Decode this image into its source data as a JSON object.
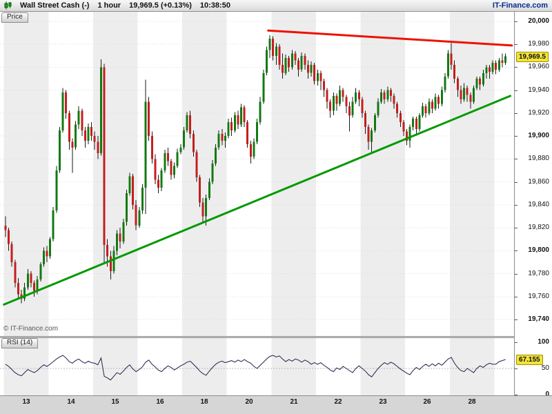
{
  "header": {
    "instrument": "Wall Street Cash (-)",
    "timeframe": "1 hour",
    "quote": "19,969.5 (+0.13%)",
    "time": "10:38:50",
    "brand": "IT-Finance.com"
  },
  "price_pane": {
    "tab_label": "Price",
    "watermark": "© IT-Finance.com",
    "last_price_label": "19,969.5",
    "axis_ticks": [
      {
        "label": "20,000",
        "value": 20000,
        "bold": true
      },
      {
        "label": "19,980",
        "value": 19980,
        "bold": false
      },
      {
        "label": "19,960",
        "value": 19960,
        "bold": false
      },
      {
        "label": "19,940",
        "value": 19940,
        "bold": false
      },
      {
        "label": "19,920",
        "value": 19920,
        "bold": false
      },
      {
        "label": "19,900",
        "value": 19900,
        "bold": true
      },
      {
        "label": "19,880",
        "value": 19880,
        "bold": false
      },
      {
        "label": "19,860",
        "value": 19860,
        "bold": false
      },
      {
        "label": "19,840",
        "value": 19840,
        "bold": false
      },
      {
        "label": "19,820",
        "value": 19820,
        "bold": false
      },
      {
        "label": "19,800",
        "value": 19800,
        "bold": true
      },
      {
        "label": "19,780",
        "value": 19780,
        "bold": false
      },
      {
        "label": "19,760",
        "value": 19760,
        "bold": false
      },
      {
        "label": "19,740",
        "value": 19740,
        "bold": true
      }
    ]
  },
  "rsi_pane": {
    "tab_label": "RSI (14)",
    "current_label": "67.155",
    "axis_ticks": [
      {
        "label": "100",
        "value": 100,
        "bold": true
      },
      {
        "label": "50",
        "value": 50,
        "bold": false
      },
      {
        "label": "0",
        "value": 0,
        "bold": true
      }
    ]
  },
  "x_axis": {
    "labels": [
      "13",
      "14",
      "15",
      "16",
      "18",
      "20",
      "21",
      "22",
      "23",
      "26",
      "28"
    ]
  },
  "colors": {
    "stripe": "#ededed",
    "grid": "#d9d9d9",
    "wick": "#1a1a1a",
    "up_candle": "#117a11",
    "down_candle": "#c41e1e",
    "trend_up": "#009900",
    "trend_down": "#ee1100",
    "rsi_line": "#20204a",
    "rsi_level": "#b9b9b9",
    "badge_bg": "#f2e33a",
    "brand_blue": "#002d8f"
  },
  "chart_data": {
    "type": "candlestick",
    "title": "Wall Street Cash (-) 1 hour",
    "indicator": "RSI (14)",
    "last_price": 19969.5,
    "price_axis": {
      "min": 19740,
      "max": 20000,
      "step": 20,
      "bold_every": 100
    },
    "x_labels": [
      "13",
      "14",
      "15",
      "16",
      "18",
      "20",
      "21",
      "22",
      "23",
      "26",
      "28"
    ],
    "candles_per_day": 14,
    "ohlc_format": [
      "open",
      "high",
      "low",
      "close"
    ],
    "candles": [
      [
        19822,
        19830,
        19812,
        19818
      ],
      [
        19818,
        19820,
        19800,
        19806
      ],
      [
        19806,
        19808,
        19786,
        19790
      ],
      [
        19790,
        19792,
        19768,
        19772
      ],
      [
        19772,
        19776,
        19758,
        19762
      ],
      [
        19762,
        19766,
        19754,
        19758
      ],
      [
        19758,
        19772,
        19756,
        19768
      ],
      [
        19768,
        19784,
        19766,
        19780
      ],
      [
        19780,
        19782,
        19768,
        19772
      ],
      [
        19772,
        19774,
        19760,
        19765
      ],
      [
        19765,
        19778,
        19762,
        19775
      ],
      [
        19775,
        19790,
        19773,
        19788
      ],
      [
        19788,
        19803,
        19786,
        19800
      ],
      [
        19800,
        19804,
        19790,
        19795
      ],
      [
        19795,
        19812,
        19793,
        19810
      ],
      [
        19810,
        19838,
        19808,
        19835
      ],
      [
        19835,
        19874,
        19833,
        19870
      ],
      [
        19870,
        19908,
        19868,
        19905
      ],
      [
        19905,
        19942,
        19903,
        19938
      ],
      [
        19938,
        19940,
        19915,
        19920
      ],
      [
        19920,
        19922,
        19888,
        19895
      ],
      [
        19895,
        19898,
        19868,
        19890
      ],
      [
        19890,
        19913,
        19888,
        19910
      ],
      [
        19910,
        19926,
        19906,
        19922
      ],
      [
        19922,
        19924,
        19900,
        19905
      ],
      [
        19905,
        19908,
        19890,
        19896
      ],
      [
        19896,
        19911,
        19893,
        19908
      ],
      [
        19908,
        19912,
        19896,
        19900
      ],
      [
        19900,
        19904,
        19888,
        19895
      ],
      [
        19895,
        19900,
        19880,
        19885
      ],
      [
        19885,
        19967,
        19883,
        19960
      ],
      [
        19960,
        19963,
        19788,
        19805
      ],
      [
        19805,
        19810,
        19786,
        19795
      ],
      [
        19795,
        19800,
        19775,
        19782
      ],
      [
        19782,
        19804,
        19780,
        19800
      ],
      [
        19800,
        19818,
        19796,
        19815
      ],
      [
        19815,
        19820,
        19802,
        19808
      ],
      [
        19808,
        19828,
        19806,
        19825
      ],
      [
        19825,
        19853,
        19822,
        19850
      ],
      [
        19850,
        19868,
        19848,
        19865
      ],
      [
        19865,
        19867,
        19836,
        19840
      ],
      [
        19840,
        19844,
        19818,
        19822
      ],
      [
        19822,
        19838,
        19820,
        19835
      ],
      [
        19835,
        19858,
        19832,
        19855
      ],
      [
        19855,
        19949,
        19832,
        19930
      ],
      [
        19930,
        19934,
        19896,
        19900
      ],
      [
        19900,
        19904,
        19876,
        19880
      ],
      [
        19880,
        19884,
        19858,
        19862
      ],
      [
        19862,
        19866,
        19850,
        19855
      ],
      [
        19855,
        19872,
        19852,
        19870
      ],
      [
        19870,
        19888,
        19868,
        19885
      ],
      [
        19885,
        19890,
        19874,
        19878
      ],
      [
        19878,
        19880,
        19862,
        19866
      ],
      [
        19866,
        19877,
        19863,
        19874
      ],
      [
        19874,
        19889,
        19872,
        19886
      ],
      [
        19886,
        19893,
        19884,
        19890
      ],
      [
        19890,
        19908,
        19888,
        19905
      ],
      [
        19905,
        19921,
        19903,
        19918
      ],
      [
        19918,
        19922,
        19898,
        19902
      ],
      [
        19902,
        19905,
        19882,
        19886
      ],
      [
        19886,
        19888,
        19860,
        19864
      ],
      [
        19864,
        19866,
        19838,
        19842
      ],
      [
        19842,
        19846,
        19824,
        19830
      ],
      [
        19830,
        19849,
        19822,
        19846
      ],
      [
        19846,
        19863,
        19844,
        19860
      ],
      [
        19860,
        19879,
        19858,
        19876
      ],
      [
        19876,
        19893,
        19874,
        19890
      ],
      [
        19890,
        19905,
        19888,
        19902
      ],
      [
        19902,
        19906,
        19892,
        19896
      ],
      [
        19896,
        19903,
        19890,
        19900
      ],
      [
        19900,
        19915,
        19898,
        19912
      ],
      [
        19912,
        19916,
        19900,
        19905
      ],
      [
        19905,
        19921,
        19903,
        19918
      ],
      [
        19918,
        19922,
        19906,
        19910
      ],
      [
        19910,
        19928,
        19908,
        19925
      ],
      [
        19925,
        19927,
        19908,
        19912
      ],
      [
        19912,
        19914,
        19890,
        19893
      ],
      [
        19893,
        19896,
        19876,
        19882
      ],
      [
        19882,
        19898,
        19880,
        19895
      ],
      [
        19895,
        19915,
        19893,
        19912
      ],
      [
        19912,
        19934,
        19910,
        19930
      ],
      [
        19930,
        19958,
        19928,
        19955
      ],
      [
        19955,
        19978,
        19953,
        19975
      ],
      [
        19975,
        19988,
        19968,
        19985
      ],
      [
        19985,
        19987,
        19966,
        19970
      ],
      [
        19970,
        19981,
        19962,
        19978
      ],
      [
        19978,
        19980,
        19958,
        19962
      ],
      [
        19962,
        19972,
        19950,
        19955
      ],
      [
        19955,
        19971,
        19953,
        19968
      ],
      [
        19968,
        19970,
        19956,
        19960
      ],
      [
        19960,
        19975,
        19958,
        19972
      ],
      [
        19972,
        19974,
        19962,
        19966
      ],
      [
        19966,
        19968,
        19952,
        19958
      ],
      [
        19958,
        19973,
        19956,
        19970
      ],
      [
        19970,
        19972,
        19958,
        19962
      ],
      [
        19962,
        19966,
        19950,
        19955
      ],
      [
        19955,
        19965,
        19952,
        19962
      ],
      [
        19962,
        19964,
        19945,
        19948
      ],
      [
        19948,
        19958,
        19944,
        19955
      ],
      [
        19955,
        19957,
        19940,
        19948
      ],
      [
        19948,
        19950,
        19934,
        19940
      ],
      [
        19940,
        19942,
        19924,
        19930
      ],
      [
        19930,
        19932,
        19916,
        19922
      ],
      [
        19922,
        19938,
        19918,
        19935
      ],
      [
        19935,
        19937,
        19922,
        19928
      ],
      [
        19928,
        19944,
        19926,
        19940
      ],
      [
        19940,
        19942,
        19930,
        19934
      ],
      [
        19934,
        19936,
        19920,
        19926
      ],
      [
        19926,
        19930,
        19904,
        19918
      ],
      [
        19918,
        19934,
        19916,
        19930
      ],
      [
        19930,
        19942,
        19928,
        19938
      ],
      [
        19938,
        19940,
        19926,
        19932
      ],
      [
        19932,
        19934,
        19916,
        19920
      ],
      [
        19920,
        19922,
        19902,
        19908
      ],
      [
        19908,
        19910,
        19888,
        19895
      ],
      [
        19895,
        19907,
        19886,
        19905
      ],
      [
        19905,
        19920,
        19903,
        19918
      ],
      [
        19918,
        19933,
        19916,
        19930
      ],
      [
        19930,
        19941,
        19928,
        19938
      ],
      [
        19938,
        19940,
        19928,
        19932
      ],
      [
        19932,
        19943,
        19930,
        19940
      ],
      [
        19940,
        19942,
        19930,
        19935
      ],
      [
        19935,
        19937,
        19924,
        19928
      ],
      [
        19928,
        19930,
        19916,
        19920
      ],
      [
        19920,
        19922,
        19908,
        19912
      ],
      [
        19912,
        19914,
        19900,
        19904
      ],
      [
        19904,
        19906,
        19892,
        19896
      ],
      [
        19896,
        19910,
        19890,
        19908
      ],
      [
        19908,
        19917,
        19905,
        19915
      ],
      [
        19915,
        19917,
        19902,
        19906
      ],
      [
        19906,
        19920,
        19904,
        19918
      ],
      [
        19918,
        19929,
        19916,
        19926
      ],
      [
        19926,
        19928,
        19916,
        19920
      ],
      [
        19920,
        19933,
        19918,
        19930
      ],
      [
        19930,
        19932,
        19920,
        19924
      ],
      [
        19924,
        19937,
        19922,
        19934
      ],
      [
        19934,
        19936,
        19924,
        19928
      ],
      [
        19928,
        19943,
        19926,
        19940
      ],
      [
        19940,
        19955,
        19938,
        19952
      ],
      [
        19952,
        19975,
        19950,
        19972
      ],
      [
        19972,
        19981,
        19958,
        19962
      ],
      [
        19962,
        19966,
        19946,
        19950
      ],
      [
        19950,
        19952,
        19934,
        19940
      ],
      [
        19940,
        19944,
        19928,
        19932
      ],
      [
        19932,
        19946,
        19930,
        19942
      ],
      [
        19942,
        19944,
        19930,
        19936
      ],
      [
        19936,
        19938,
        19924,
        19930
      ],
      [
        19930,
        19944,
        19928,
        19942
      ],
      [
        19942,
        19952,
        19940,
        19950
      ],
      [
        19950,
        19952,
        19940,
        19945
      ],
      [
        19945,
        19958,
        19943,
        19955
      ],
      [
        19955,
        19962,
        19950,
        19960
      ],
      [
        19960,
        19962,
        19950,
        19956
      ],
      [
        19956,
        19966,
        19954,
        19964
      ],
      [
        19964,
        19966,
        19954,
        19958
      ],
      [
        19958,
        19968,
        19956,
        19966
      ],
      [
        19966,
        19972,
        19960,
        19964
      ],
      [
        19964,
        19972,
        19962,
        19969.5
      ]
    ],
    "trendlines": [
      {
        "name": "support",
        "color": "#009900",
        "width": 3,
        "from": {
          "i": -0.5,
          "price": 19753
        },
        "to": {
          "i": 158.5,
          "price": 19935
        }
      },
      {
        "name": "resistance",
        "color": "#ee1100",
        "width": 3,
        "from": {
          "i": 82.5,
          "price": 19992
        },
        "to": {
          "i": 159,
          "price": 19979
        }
      }
    ],
    "rsi": {
      "period": 14,
      "range": [
        0,
        100
      ],
      "levels": [
        50
      ],
      "current": 67.155,
      "values": [
        58,
        54,
        48,
        42,
        38,
        36,
        42,
        48,
        45,
        42,
        46,
        52,
        57,
        54,
        58,
        63,
        68,
        72,
        75,
        70,
        63,
        60,
        65,
        68,
        63,
        60,
        64,
        61,
        60,
        57,
        70,
        35,
        32,
        28,
        35,
        42,
        39,
        45,
        52,
        57,
        49,
        44,
        48,
        53,
        62,
        66,
        58,
        53,
        47,
        44,
        50,
        55,
        52,
        47,
        51,
        55,
        58,
        62,
        64,
        58,
        52,
        45,
        40,
        37,
        45,
        52,
        58,
        62,
        64,
        61,
        63,
        65,
        62,
        66,
        63,
        67,
        63,
        60,
        54,
        50,
        56,
        62,
        68,
        73,
        75,
        72,
        74,
        68,
        63,
        67,
        64,
        68,
        66,
        62,
        66,
        63,
        58,
        61,
        58,
        61,
        56,
        52,
        47,
        44,
        51,
        48,
        54,
        50,
        46,
        42,
        50,
        55,
        50,
        45,
        38,
        34,
        42,
        50,
        56,
        61,
        58,
        62,
        59,
        54,
        49,
        45,
        41,
        38,
        46,
        52,
        48,
        54,
        58,
        54,
        59,
        55,
        60,
        56,
        62,
        68,
        71,
        60,
        52,
        46,
        44,
        50,
        46,
        42,
        50,
        55,
        52,
        57,
        60,
        58,
        58,
        63,
        65,
        67.155
      ]
    }
  }
}
